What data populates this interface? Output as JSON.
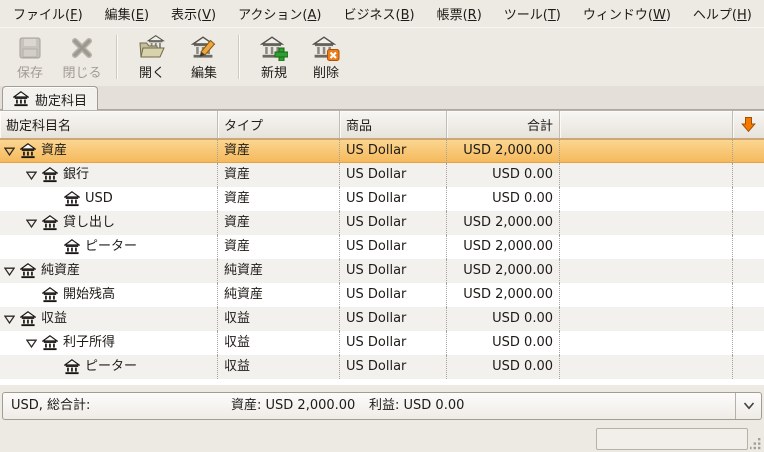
{
  "menubar": {
    "items": [
      {
        "label": "ファイル(F)"
      },
      {
        "label": "編集(E)"
      },
      {
        "label": "表示(V)"
      },
      {
        "label": "アクション(A)"
      },
      {
        "label": "ビジネス(B)"
      },
      {
        "label": "帳票(R)"
      },
      {
        "label": "ツール(T)"
      },
      {
        "label": "ウィンドウ(W)"
      },
      {
        "label": "ヘルプ(H)"
      }
    ]
  },
  "toolbar": {
    "buttons": [
      {
        "label": "保存",
        "icon": "save-icon",
        "enabled": false
      },
      {
        "label": "閉じる",
        "icon": "close-icon",
        "enabled": false
      },
      {
        "label": "開く",
        "icon": "open-account-icon",
        "enabled": true
      },
      {
        "label": "編集",
        "icon": "edit-account-icon",
        "enabled": true
      },
      {
        "label": "新規",
        "icon": "new-account-icon",
        "enabled": true
      },
      {
        "label": "削除",
        "icon": "delete-account-icon",
        "enabled": true
      }
    ]
  },
  "tab": {
    "label": "勘定科目",
    "icon": "bank-icon"
  },
  "table": {
    "columns": [
      {
        "label": "勘定科目名"
      },
      {
        "label": "タイプ"
      },
      {
        "label": "商品"
      },
      {
        "label": "合計"
      }
    ],
    "sort_indicator_icon": "orange-down-arrow-icon",
    "rows": [
      {
        "level": 0,
        "expanded": true,
        "selected": true,
        "name": "資産",
        "type": "資産",
        "commodity": "US Dollar",
        "total": "USD 2,000.00"
      },
      {
        "level": 1,
        "expanded": true,
        "selected": false,
        "name": "銀行",
        "type": "資産",
        "commodity": "US Dollar",
        "total": "USD 0.00"
      },
      {
        "level": 2,
        "expanded": false,
        "selected": false,
        "name": "USD",
        "type": "資産",
        "commodity": "US Dollar",
        "total": "USD 0.00"
      },
      {
        "level": 1,
        "expanded": true,
        "selected": false,
        "name": "貸し出し",
        "type": "資産",
        "commodity": "US Dollar",
        "total": "USD 2,000.00"
      },
      {
        "level": 2,
        "expanded": false,
        "selected": false,
        "name": "ピーター",
        "type": "資産",
        "commodity": "US Dollar",
        "total": "USD 2,000.00"
      },
      {
        "level": 0,
        "expanded": true,
        "selected": false,
        "name": "純資産",
        "type": "純資産",
        "commodity": "US Dollar",
        "total": "USD 2,000.00"
      },
      {
        "level": 1,
        "expanded": false,
        "selected": false,
        "name": "開始残高",
        "type": "純資産",
        "commodity": "US Dollar",
        "total": "USD 2,000.00"
      },
      {
        "level": 0,
        "expanded": true,
        "selected": false,
        "name": "収益",
        "type": "収益",
        "commodity": "US Dollar",
        "total": "USD 0.00"
      },
      {
        "level": 1,
        "expanded": true,
        "selected": false,
        "name": "利子所得",
        "type": "収益",
        "commodity": "US Dollar",
        "total": "USD 0.00"
      },
      {
        "level": 2,
        "expanded": false,
        "selected": false,
        "name": "ピーター",
        "type": "収益",
        "commodity": "US Dollar",
        "total": "USD 0.00"
      }
    ]
  },
  "summary": {
    "grand_total_label": "USD, 総合計:",
    "assets_label": "資産: USD 2,000.00",
    "profit_label": "利益: USD 0.00"
  },
  "colors": {
    "selection_top": "#fcd793",
    "selection_bottom": "#f5b85a",
    "accent_orange": "#f57900",
    "window_bg": "#edeae3"
  }
}
